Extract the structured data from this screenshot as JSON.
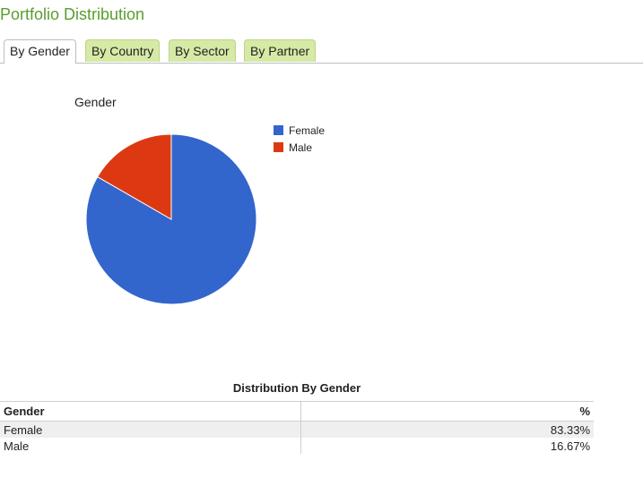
{
  "page": {
    "title": "Portfolio Distribution"
  },
  "tabs": [
    {
      "label": "By Gender",
      "active": true
    },
    {
      "label": "By Country",
      "active": false
    },
    {
      "label": "By Sector",
      "active": false
    },
    {
      "label": "By Partner",
      "active": false
    }
  ],
  "colors": {
    "title": "#5a9e2f",
    "tab_inactive": "#d6eaa6",
    "female": "#3366cc",
    "male": "#dc3912"
  },
  "chart_data": {
    "type": "pie",
    "title": "Gender",
    "categories": [
      "Female",
      "Male"
    ],
    "values": [
      83.33,
      16.67
    ],
    "legend": "right",
    "colors": [
      "#3366cc",
      "#dc3912"
    ]
  },
  "table": {
    "caption": "Distribution By Gender",
    "headers": [
      "Gender",
      "%"
    ],
    "rows": [
      [
        "Female",
        "83.33%"
      ],
      [
        "Male",
        "16.67%"
      ]
    ]
  }
}
